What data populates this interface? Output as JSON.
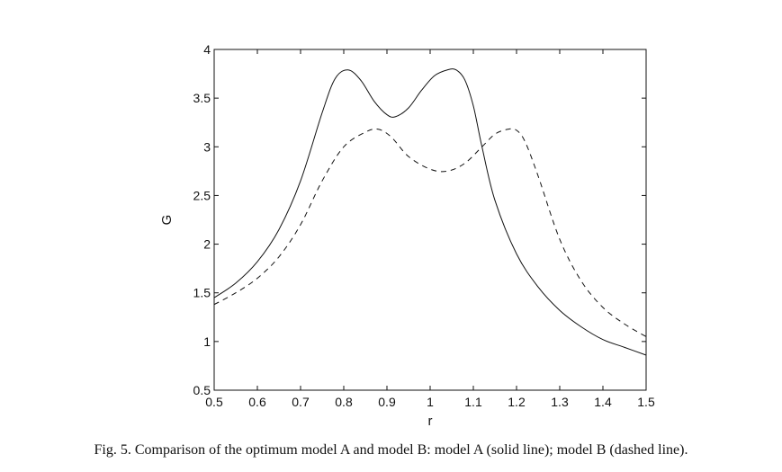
{
  "caption": "Fig. 5. Comparison of the optimum model A and model B: model A (solid line); model B (dashed line).",
  "chart_data": {
    "type": "line",
    "xlabel": "r",
    "ylabel": "G",
    "xlim": [
      0.5,
      1.5
    ],
    "ylim": [
      0.5,
      4
    ],
    "xticks": [
      "0.5",
      "0.6",
      "0.7",
      "0.8",
      "0.9",
      "1",
      "1.1",
      "1.2",
      "1.3",
      "1.4",
      "1.5"
    ],
    "yticks": [
      "0.5",
      "1",
      "1.5",
      "2",
      "2.5",
      "3",
      "3.5",
      "4"
    ],
    "grid": false,
    "legend": "none",
    "series": [
      {
        "style": "solid",
        "color": "#111111",
        "x": [
          0.5,
          0.55,
          0.6,
          0.65,
          0.7,
          0.75,
          0.78,
          0.81,
          0.84,
          0.87,
          0.9,
          0.92,
          0.95,
          0.98,
          1.01,
          1.04,
          1.06,
          1.08,
          1.1,
          1.12,
          1.15,
          1.2,
          1.25,
          1.3,
          1.35,
          1.4,
          1.45,
          1.5
        ],
        "y": [
          1.45,
          1.6,
          1.82,
          2.15,
          2.65,
          3.35,
          3.7,
          3.79,
          3.68,
          3.47,
          3.33,
          3.31,
          3.4,
          3.58,
          3.73,
          3.79,
          3.79,
          3.69,
          3.42,
          3.0,
          2.45,
          1.9,
          1.56,
          1.32,
          1.15,
          1.02,
          0.94,
          0.86
        ]
      },
      {
        "style": "dashed",
        "color": "#111111",
        "x": [
          0.5,
          0.55,
          0.6,
          0.65,
          0.7,
          0.75,
          0.8,
          0.85,
          0.88,
          0.91,
          0.95,
          1.0,
          1.04,
          1.08,
          1.12,
          1.15,
          1.18,
          1.2,
          1.22,
          1.25,
          1.3,
          1.35,
          1.4,
          1.45,
          1.5
        ],
        "y": [
          1.38,
          1.5,
          1.65,
          1.87,
          2.2,
          2.65,
          3.0,
          3.15,
          3.18,
          3.1,
          2.9,
          2.77,
          2.75,
          2.83,
          3.0,
          3.13,
          3.18,
          3.17,
          3.05,
          2.7,
          2.05,
          1.62,
          1.35,
          1.18,
          1.05
        ]
      }
    ]
  }
}
